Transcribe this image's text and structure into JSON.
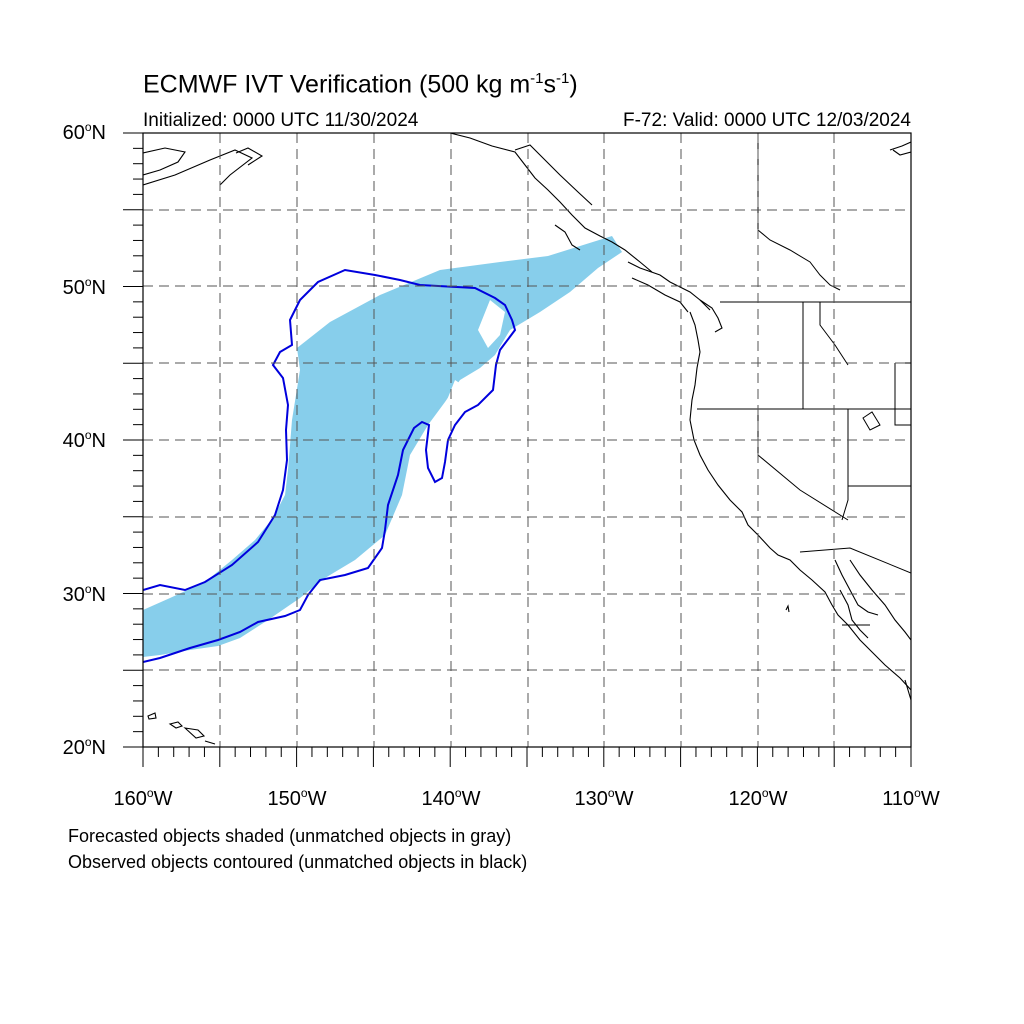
{
  "figure": {
    "title_main": "ECMWF IVT Verification (500 kg m",
    "title_exp1": "-1",
    "title_s": "s",
    "title_exp2": "-1",
    "title_close": ")",
    "initialized": "Initialized: 0000 UTC 11/30/2024",
    "valid": "F-72: Valid: 0000 UTC 12/03/2024"
  },
  "axes": {
    "lat_labels": [
      {
        "value": "60",
        "suffix": "N"
      },
      {
        "value": "50",
        "suffix": "N"
      },
      {
        "value": "40",
        "suffix": "N"
      },
      {
        "value": "30",
        "suffix": "N"
      },
      {
        "value": "20",
        "suffix": "N"
      }
    ],
    "lon_labels": [
      {
        "value": "160",
        "suffix": "W"
      },
      {
        "value": "150",
        "suffix": "W"
      },
      {
        "value": "140",
        "suffix": "W"
      },
      {
        "value": "130",
        "suffix": "W"
      },
      {
        "value": "120",
        "suffix": "W"
      },
      {
        "value": "110",
        "suffix": "W"
      }
    ],
    "lat_range": [
      20,
      60
    ],
    "lon_range": [
      -160,
      -110
    ]
  },
  "legend": {
    "line1": "Forecasted objects shaded (unmatched objects in gray)",
    "line2": "Observed objects contoured (unmatched objects in black)"
  },
  "colors": {
    "forecast_fill": "#87ceeb",
    "observed_contour": "#0000dd",
    "coastline": "#000000",
    "grid": "#555555"
  }
}
